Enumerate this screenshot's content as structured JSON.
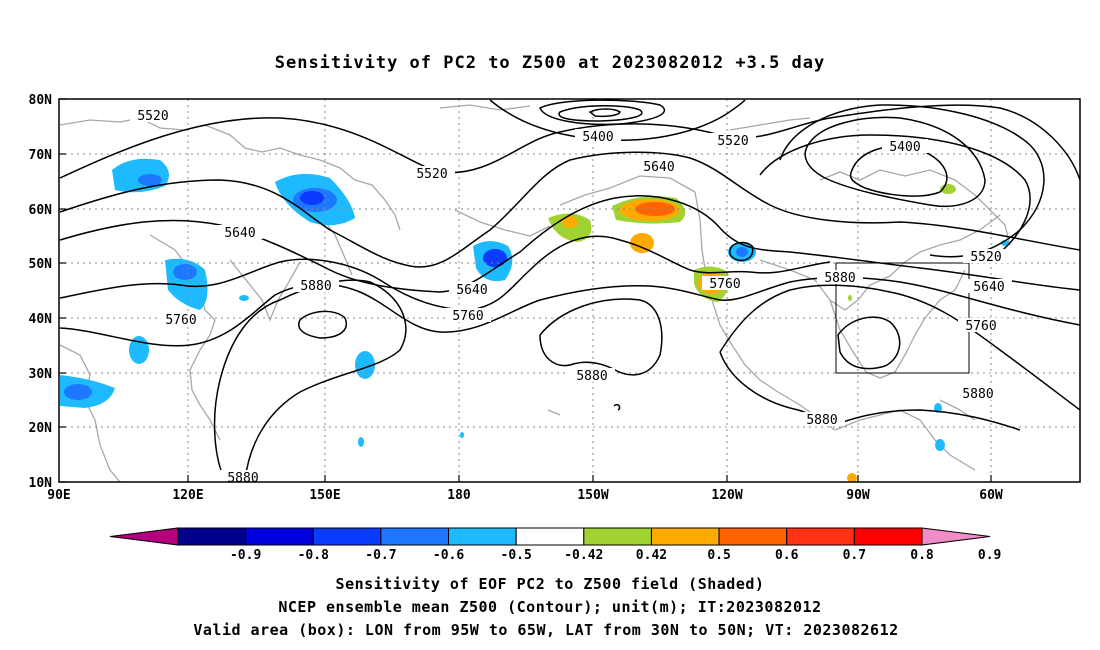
{
  "title": "Sensitivity of PC2 to Z500 at 2023082012 +3.5 day",
  "map": {
    "lat_ticks": [
      "80N",
      "70N",
      "60N",
      "50N",
      "40N",
      "30N",
      "20N",
      "10N"
    ],
    "lon_ticks": [
      "90E",
      "120E",
      "150E",
      "180",
      "150W",
      "120W",
      "90W",
      "60W"
    ],
    "contour_labels": [
      "5520",
      "5400",
      "5520",
      "5400",
      "5640",
      "5520",
      "5640",
      "5880",
      "5640",
      "5760",
      "5760",
      "5880",
      "5760",
      "5880",
      "5520",
      "5640",
      "5760",
      "5880",
      "5880",
      "5880"
    ]
  },
  "colorbar": {
    "labels": [
      "-0.9",
      "-0.8",
      "-0.7",
      "-0.6",
      "-0.5",
      "-0.42",
      "0.42",
      "0.5",
      "0.6",
      "0.7",
      "0.8",
      "0.9"
    ],
    "colors": [
      "#b4007f",
      "#00008c",
      "#0000dc",
      "#0a3cff",
      "#1e78ff",
      "#1ebaff",
      "#ffffff",
      "#a0d232",
      "#ffaa00",
      "#ff6400",
      "#ff3214",
      "#ff0000",
      "#f08cc8"
    ]
  },
  "caption": {
    "line1": "Sensitivity of EOF PC2 to Z500 field (Shaded)",
    "line2": "NCEP ensemble mean Z500 (Contour); unit(m); IT:2023082012",
    "line3": "Valid area (box): LON from 95W to 65W, LAT from 30N to 50N; VT: 2023082612"
  }
}
